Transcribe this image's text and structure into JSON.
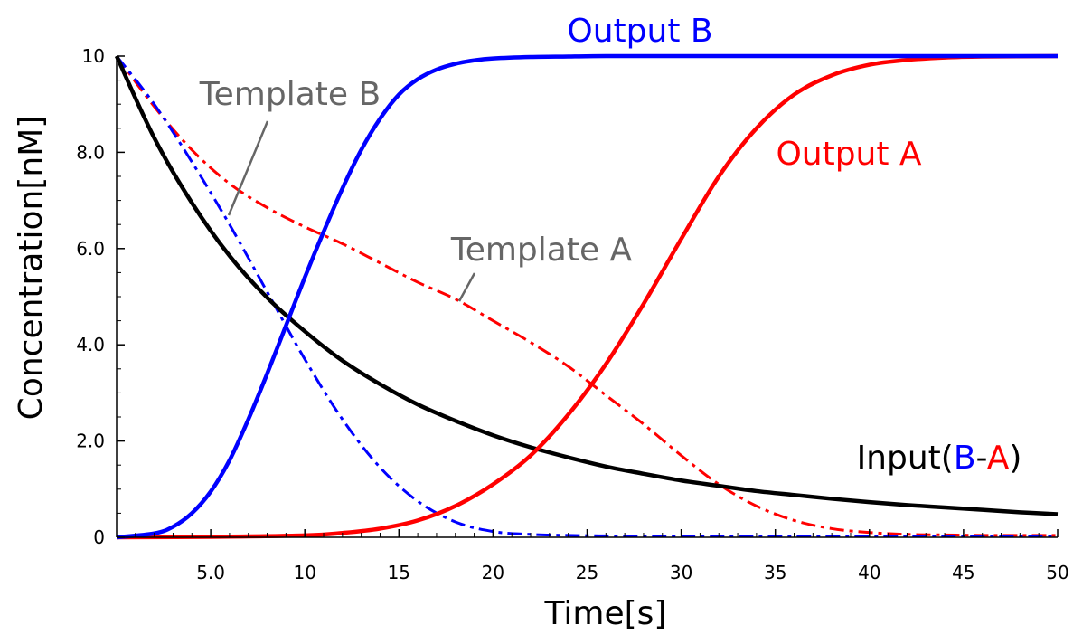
{
  "chart_data": {
    "type": "line",
    "xlabel": "Time[s]",
    "ylabel": "Concentration[nM]",
    "xlim": [
      0,
      50
    ],
    "ylim": [
      0,
      10
    ],
    "x_ticks": [
      {
        "value": 5,
        "label": "5.0"
      },
      {
        "value": 10,
        "label": "10"
      },
      {
        "value": 15,
        "label": "15"
      },
      {
        "value": 20,
        "label": "20"
      },
      {
        "value": 25,
        "label": "25"
      },
      {
        "value": 30,
        "label": "30"
      },
      {
        "value": 35,
        "label": "35"
      },
      {
        "value": 40,
        "label": "40"
      },
      {
        "value": 45,
        "label": "45"
      },
      {
        "value": 50,
        "label": "50"
      }
    ],
    "y_ticks": [
      {
        "value": 0,
        "label": "0"
      },
      {
        "value": 2,
        "label": "2.0"
      },
      {
        "value": 4,
        "label": "4.0"
      },
      {
        "value": 6,
        "label": "6.0"
      },
      {
        "value": 8,
        "label": "8.0"
      },
      {
        "value": 10,
        "label": "10"
      }
    ],
    "grid": false,
    "series": [
      {
        "name": "Input(B-A)",
        "color": "#000000",
        "style": "solid",
        "x": [
          0,
          2,
          4,
          6,
          8,
          10,
          12,
          14,
          16,
          18,
          20,
          22,
          24,
          26,
          28,
          30,
          32,
          34,
          36,
          38,
          40,
          42,
          44,
          46,
          48,
          50
        ],
        "y": [
          10.0,
          8.3,
          6.95,
          5.85,
          4.98,
          4.28,
          3.67,
          3.18,
          2.76,
          2.42,
          2.12,
          1.87,
          1.66,
          1.47,
          1.32,
          1.18,
          1.07,
          0.96,
          0.88,
          0.8,
          0.73,
          0.67,
          0.62,
          0.57,
          0.52,
          0.48
        ]
      },
      {
        "name": "Template B",
        "color": "#0000ff",
        "style": "dashdot",
        "x": [
          0,
          2,
          4,
          6,
          8,
          10,
          12,
          14,
          16,
          18,
          20,
          22,
          24,
          26,
          28,
          30,
          35,
          40,
          45,
          50
        ],
        "y": [
          10.0,
          9.0,
          7.8,
          6.5,
          5.1,
          3.7,
          2.45,
          1.45,
          0.75,
          0.32,
          0.12,
          0.06,
          0.04,
          0.03,
          0.02,
          0.02,
          0.02,
          0.02,
          0.02,
          0.02
        ]
      },
      {
        "name": "Template A",
        "color": "#ff0000",
        "style": "dashdot",
        "x": [
          0,
          2,
          4,
          6,
          8,
          10,
          12,
          14,
          16,
          18,
          20,
          22,
          24,
          26,
          28,
          30,
          32,
          34,
          36,
          38,
          40,
          42,
          44,
          46,
          48,
          50
        ],
        "y": [
          10.0,
          8.95,
          8.05,
          7.35,
          6.85,
          6.45,
          6.1,
          5.7,
          5.3,
          4.95,
          4.5,
          4.05,
          3.55,
          2.95,
          2.35,
          1.7,
          1.1,
          0.65,
          0.35,
          0.18,
          0.1,
          0.06,
          0.05,
          0.04,
          0.04,
          0.04
        ]
      },
      {
        "name": "Output B",
        "color": "#0000ff",
        "style": "solid",
        "x": [
          0,
          2,
          3,
          4,
          5,
          6,
          7,
          8,
          9,
          10,
          11,
          12,
          13,
          14,
          15,
          16,
          17,
          18,
          19,
          20,
          22,
          24,
          26,
          30,
          35,
          40,
          45,
          50
        ],
        "y": [
          0.0,
          0.08,
          0.22,
          0.5,
          0.95,
          1.6,
          2.45,
          3.4,
          4.4,
          5.4,
          6.35,
          7.25,
          8.05,
          8.7,
          9.2,
          9.52,
          9.72,
          9.84,
          9.91,
          9.95,
          9.98,
          9.99,
          10.0,
          10.0,
          10.0,
          10.0,
          10.0,
          10.0
        ]
      },
      {
        "name": "Output A",
        "color": "#ff0000",
        "style": "solid",
        "x": [
          0,
          5,
          10,
          12,
          14,
          16,
          18,
          20,
          22,
          24,
          26,
          28,
          30,
          32,
          34,
          36,
          38,
          40,
          42,
          44,
          46,
          50
        ],
        "y": [
          0.0,
          0.01,
          0.04,
          0.09,
          0.18,
          0.35,
          0.65,
          1.1,
          1.7,
          2.55,
          3.6,
          4.85,
          6.2,
          7.5,
          8.5,
          9.2,
          9.6,
          9.82,
          9.92,
          9.97,
          9.99,
          10.0
        ]
      }
    ],
    "annotations": [
      {
        "text": "Output B",
        "color": "#0000ff"
      },
      {
        "text": "Output A",
        "color": "#ff0000"
      },
      {
        "text": "Template B",
        "color": "#666666"
      },
      {
        "text": "Template A",
        "color": "#666666"
      }
    ],
    "input_label": {
      "prefix": "Input(",
      "b": "B",
      "dash": "-",
      "a": "A",
      "suffix": ")",
      "b_color": "#0000ff",
      "a_color": "#ff0000",
      "text_color": "#000000"
    }
  }
}
